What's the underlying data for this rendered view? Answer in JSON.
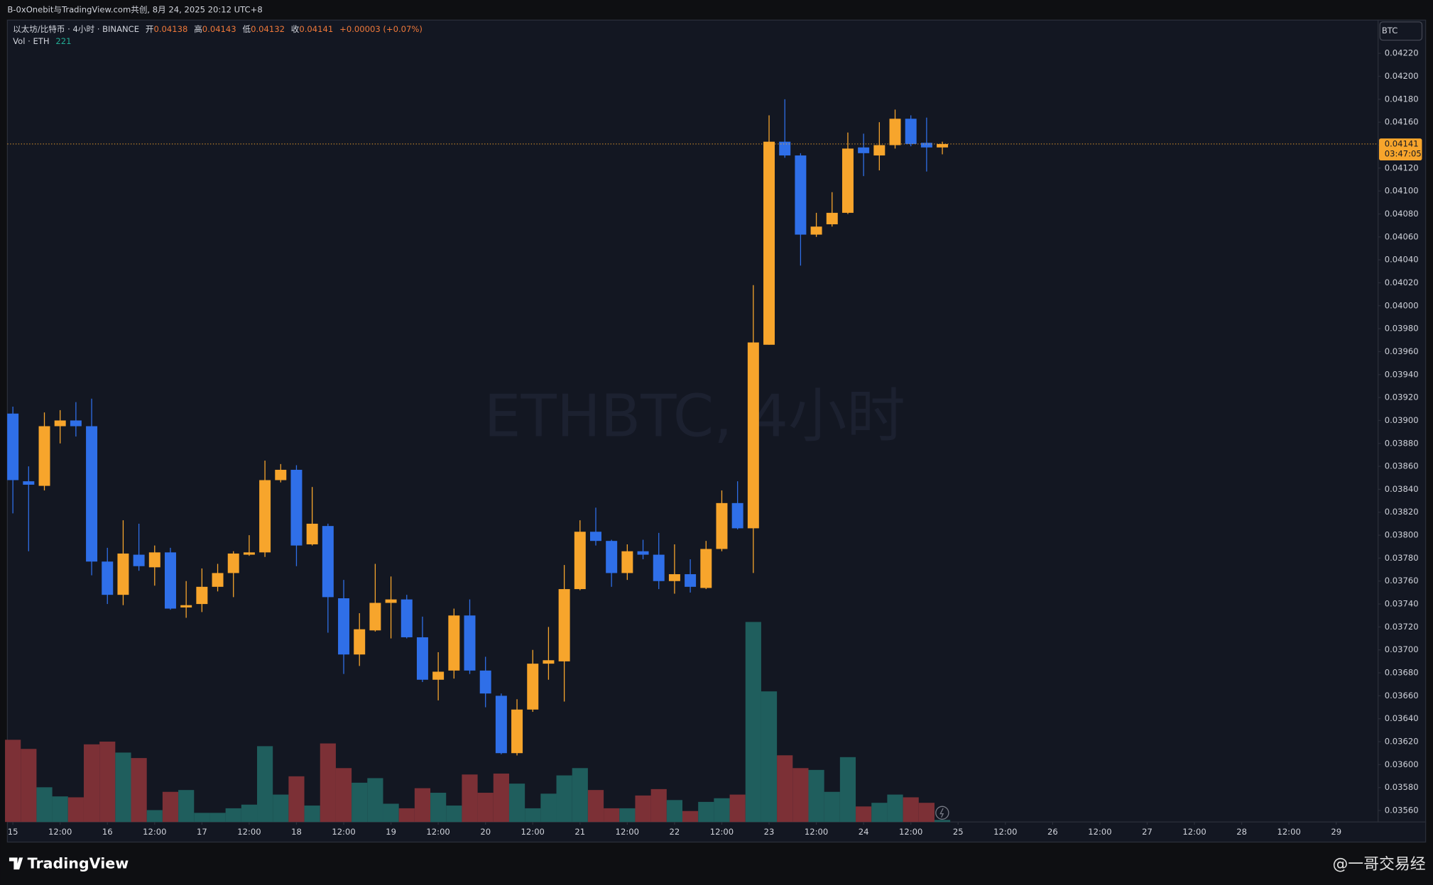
{
  "header": {
    "caption": "B-0xOnebit与TradingView.com共创, 8月 24, 2025 20:12 UTC+8"
  },
  "legend": {
    "symbol": "以太坊/比特币 · 4小时 · BINANCE",
    "open_label": "开",
    "high_label": "高",
    "low_label": "低",
    "close_label": "收",
    "change": "+0.00003 (+0.07%)",
    "volume_label": "Vol · ETH"
  },
  "axis_currency": "BTC",
  "countdown": "03:47:05",
  "footer": {
    "brand": "TradingView",
    "author": "@一哥交易经"
  },
  "chart_data": {
    "type": "candlestick",
    "title": "ETHBTC, 4小时",
    "open": [
      0.03906,
      0.03847,
      0.03843,
      0.03895,
      0.039,
      0.03895,
      0.03777,
      0.03748,
      0.03783,
      0.03772,
      0.03785,
      0.03737,
      0.0374,
      0.03755,
      0.03767,
      0.03783,
      0.03785,
      0.03848,
      0.03857,
      0.03792,
      0.03808,
      0.03745,
      0.03696,
      0.03717,
      0.03741,
      0.03744,
      0.03711,
      0.03674,
      0.03682,
      0.0373,
      0.03682,
      0.0366,
      0.0361,
      0.03648,
      0.03688,
      0.0369,
      0.03753,
      0.03803,
      0.03795,
      0.03767,
      0.03786,
      0.03783,
      0.0376,
      0.03766,
      0.03754,
      0.03788,
      0.03828,
      0.03806,
      0.03966,
      0.04143,
      0.04131,
      0.04062,
      0.04071,
      0.04081,
      0.04138,
      0.04131,
      0.0414,
      0.04163,
      0.04142,
      0.04138
    ],
    "high": [
      0.03912,
      0.0386,
      0.03907,
      0.03909,
      0.03916,
      0.03919,
      0.03789,
      0.03813,
      0.0381,
      0.03791,
      0.03789,
      0.0376,
      0.03771,
      0.03775,
      0.03786,
      0.038,
      0.03865,
      0.03862,
      0.03861,
      0.03842,
      0.0381,
      0.03761,
      0.03732,
      0.03775,
      0.03764,
      0.03748,
      0.03729,
      0.03698,
      0.03736,
      0.03744,
      0.03694,
      0.03662,
      0.03657,
      0.037,
      0.0372,
      0.03774,
      0.03813,
      0.03824,
      0.03796,
      0.03792,
      0.03796,
      0.03802,
      0.03792,
      0.03779,
      0.03795,
      0.03839,
      0.03847,
      0.04018,
      0.04166,
      0.0418,
      0.04133,
      0.04081,
      0.04099,
      0.04151,
      0.0415,
      0.0416,
      0.04171,
      0.04166,
      0.04164,
      0.04143
    ],
    "low": [
      0.03819,
      0.03786,
      0.03839,
      0.0388,
      0.03886,
      0.03765,
      0.0374,
      0.03739,
      0.03769,
      0.03756,
      0.03735,
      0.03728,
      0.03733,
      0.03751,
      0.03746,
      0.03782,
      0.03781,
      0.03846,
      0.03773,
      0.03791,
      0.03715,
      0.03679,
      0.03686,
      0.03716,
      0.0371,
      0.0371,
      0.03672,
      0.03656,
      0.03675,
      0.03679,
      0.0365,
      0.03609,
      0.03608,
      0.03646,
      0.03674,
      0.03655,
      0.03752,
      0.03791,
      0.03755,
      0.03761,
      0.03779,
      0.03753,
      0.03749,
      0.0375,
      0.03753,
      0.03786,
      0.03805,
      0.03767,
      0.03966,
      0.04129,
      0.04035,
      0.0406,
      0.04069,
      0.0408,
      0.04113,
      0.04118,
      0.04137,
      0.04139,
      0.04117,
      0.04132
    ],
    "close": [
      0.03848,
      0.03844,
      0.03895,
      0.039,
      0.03895,
      0.03777,
      0.03748,
      0.03784,
      0.03773,
      0.03785,
      0.03736,
      0.03739,
      0.03755,
      0.03767,
      0.03784,
      0.03785,
      0.03848,
      0.03857,
      0.03791,
      0.0381,
      0.03746,
      0.03696,
      0.03718,
      0.03741,
      0.03744,
      0.03711,
      0.03674,
      0.03681,
      0.0373,
      0.03682,
      0.03662,
      0.0361,
      0.03648,
      0.03688,
      0.03691,
      0.03753,
      0.03803,
      0.03795,
      0.03767,
      0.03786,
      0.03783,
      0.0376,
      0.03766,
      0.03755,
      0.03788,
      0.03828,
      0.03806,
      0.03968,
      0.04143,
      0.04131,
      0.04062,
      0.04069,
      0.04081,
      0.04137,
      0.04133,
      0.0414,
      0.04163,
      0.04141,
      0.04138,
      0.04141
    ],
    "volume": [
      9000,
      8000,
      3800,
      2800,
      2700,
      8500,
      8800,
      7600,
      7000,
      1300,
      3300,
      3500,
      1000,
      1000,
      1500,
      1900,
      8300,
      3000,
      5000,
      1800,
      8600,
      5900,
      4300,
      4800,
      2000,
      1500,
      3700,
      3200,
      1800,
      5200,
      3200,
      5300,
      4200,
      1500,
      3100,
      5100,
      5900,
      3500,
      1500,
      1500,
      2900,
      3600,
      2400,
      1200,
      2200,
      2600,
      3000,
      21900,
      14300,
      7300,
      5900,
      5700,
      3300,
      7100,
      1700,
      2100,
      3000,
      2700,
      2100,
      221
    ],
    "up_color": "#f7a52c",
    "down_color": "#2f6fe8",
    "volume_up_color": "#1f5e5d",
    "volume_down_color": "#7c3036",
    "last_price_color": "#f7a52c",
    "xlim": [
      -0.35,
      86.66
    ],
    "xticks": [
      {
        "value": 0,
        "label": "15"
      },
      {
        "value": 3,
        "label": "12:00"
      },
      {
        "value": 6,
        "label": "16"
      },
      {
        "value": 9,
        "label": "12:00"
      },
      {
        "value": 12,
        "label": "17"
      },
      {
        "value": 15,
        "label": "12:00"
      },
      {
        "value": 18,
        "label": "18"
      },
      {
        "value": 21,
        "label": "12:00"
      },
      {
        "value": 24,
        "label": "19"
      },
      {
        "value": 27,
        "label": "12:00"
      },
      {
        "value": 30,
        "label": "20"
      },
      {
        "value": 33,
        "label": "12:00"
      },
      {
        "value": 36,
        "label": "21"
      },
      {
        "value": 39,
        "label": "12:00"
      },
      {
        "value": 42,
        "label": "22"
      },
      {
        "value": 45,
        "label": "12:00"
      },
      {
        "value": 48,
        "label": "23"
      },
      {
        "value": 51,
        "label": "12:00"
      },
      {
        "value": 54,
        "label": "24"
      },
      {
        "value": 57,
        "label": "12:00"
      },
      {
        "value": 60,
        "label": "25"
      },
      {
        "value": 63,
        "label": "12:00"
      },
      {
        "value": 66,
        "label": "26"
      },
      {
        "value": 69,
        "label": "12:00"
      },
      {
        "value": 72,
        "label": "27"
      },
      {
        "value": 75,
        "label": "12:00"
      },
      {
        "value": 78,
        "label": "28"
      },
      {
        "value": 81,
        "label": "12:00"
      },
      {
        "value": 84,
        "label": "29"
      }
    ],
    "ylim": [
      0.0355,
      0.04249
    ],
    "yticks": [
      {
        "value": 0.0422,
        "label": "0.04220"
      },
      {
        "value": 0.042,
        "label": "0.04200"
      },
      {
        "value": 0.0418,
        "label": "0.04180"
      },
      {
        "value": 0.0416,
        "label": "0.04160"
      },
      {
        "value": 0.0414,
        "label": "0.04140"
      },
      {
        "value": 0.0412,
        "label": "0.04120"
      },
      {
        "value": 0.041,
        "label": "0.04100"
      },
      {
        "value": 0.0408,
        "label": "0.04080"
      },
      {
        "value": 0.0406,
        "label": "0.04060"
      },
      {
        "value": 0.0404,
        "label": "0.04040"
      },
      {
        "value": 0.0402,
        "label": "0.04020"
      },
      {
        "value": 0.04,
        "label": "0.04000"
      },
      {
        "value": 0.0398,
        "label": "0.03980"
      },
      {
        "value": 0.0396,
        "label": "0.03960"
      },
      {
        "value": 0.0394,
        "label": "0.03940"
      },
      {
        "value": 0.0392,
        "label": "0.03920"
      },
      {
        "value": 0.039,
        "label": "0.03900"
      },
      {
        "value": 0.0388,
        "label": "0.03880"
      },
      {
        "value": 0.0386,
        "label": "0.03860"
      },
      {
        "value": 0.0384,
        "label": "0.03840"
      },
      {
        "value": 0.0382,
        "label": "0.03820"
      },
      {
        "value": 0.038,
        "label": "0.03800"
      },
      {
        "value": 0.0378,
        "label": "0.03780"
      },
      {
        "value": 0.0376,
        "label": "0.03760"
      },
      {
        "value": 0.0374,
        "label": "0.03740"
      },
      {
        "value": 0.0372,
        "label": "0.03720"
      },
      {
        "value": 0.037,
        "label": "0.03700"
      },
      {
        "value": 0.0368,
        "label": "0.03680"
      },
      {
        "value": 0.0366,
        "label": "0.03660"
      },
      {
        "value": 0.0364,
        "label": "0.03640"
      },
      {
        "value": 0.0362,
        "label": "0.03620"
      },
      {
        "value": 0.036,
        "label": "0.03600"
      },
      {
        "value": 0.0358,
        "label": "0.03580"
      },
      {
        "value": 0.0356,
        "label": "0.03560"
      }
    ]
  }
}
